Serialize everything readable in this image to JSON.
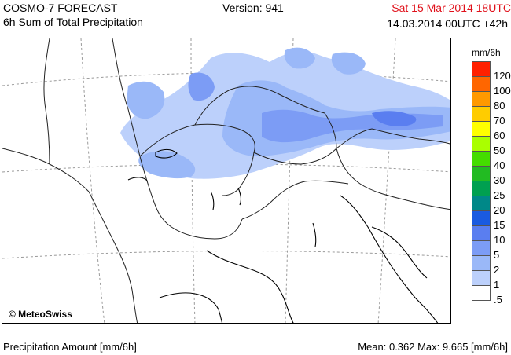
{
  "header": {
    "title": "COSMO-7 FORECAST",
    "subtitle": "6h Sum of Total Precipitation",
    "version": "Version: 941",
    "valid_time": "Sat 15 Mar 2014 18UTC",
    "run_time": "14.03.2014 00UTC +42h"
  },
  "map": {
    "copyright": "© MeteoSwiss"
  },
  "legend": {
    "unit": "mm/6h",
    "items": [
      {
        "label": "120",
        "color": "#ff2000"
      },
      {
        "label": "100",
        "color": "#ff6600"
      },
      {
        "label": "80",
        "color": "#ff9900"
      },
      {
        "label": "70",
        "color": "#ffcc00"
      },
      {
        "label": "60",
        "color": "#ffff00"
      },
      {
        "label": "50",
        "color": "#aaff00"
      },
      {
        "label": "40",
        "color": "#44dd00"
      },
      {
        "label": "30",
        "color": "#22bb22"
      },
      {
        "label": "25",
        "color": "#00a050"
      },
      {
        "label": "20",
        "color": "#008888"
      },
      {
        "label": "15",
        "color": "#1a5ae0"
      },
      {
        "label": "10",
        "color": "#5a7ef0"
      },
      {
        "label": "5",
        "color": "#7c9cf5"
      },
      {
        "label": "2",
        "color": "#9ab8f8"
      },
      {
        "label": "1",
        "color": "#bcd0fb"
      },
      {
        "label": ".5",
        "color": "#ffffff"
      }
    ]
  },
  "footer": {
    "left": "Precipitation Amount [mm/6h]",
    "right": "Mean:  0.362 Max:  9.665 [mm/6h]"
  }
}
